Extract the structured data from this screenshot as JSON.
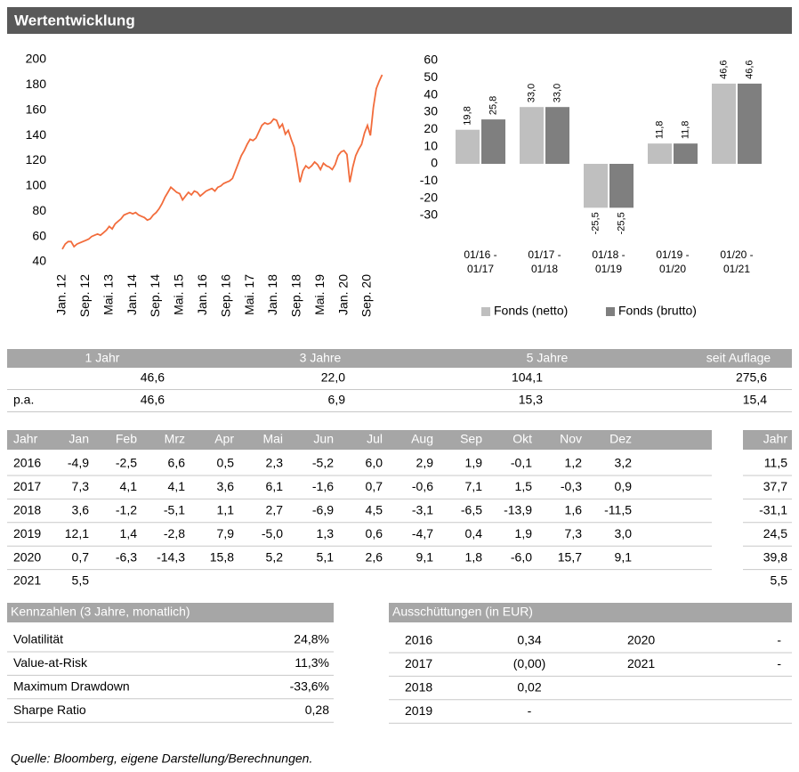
{
  "header": {
    "title": "Wertentwicklung"
  },
  "chart_data": [
    {
      "type": "line",
      "categories": [
        "Jan. 12",
        null,
        null,
        null,
        null,
        null,
        null,
        null,
        "Sep. 12",
        null,
        null,
        null,
        null,
        null,
        null,
        null,
        "Mai. 13",
        null,
        null,
        null,
        null,
        null,
        null,
        null,
        "Jan. 14",
        null,
        null,
        null,
        null,
        null,
        null,
        null,
        "Sep. 14",
        null,
        null,
        null,
        null,
        null,
        null,
        null,
        "Mai. 15",
        null,
        null,
        null,
        null,
        null,
        null,
        null,
        "Jan. 16",
        null,
        null,
        null,
        null,
        null,
        null,
        null,
        "Sep. 16",
        null,
        null,
        null,
        null,
        null,
        null,
        null,
        "Mai. 17",
        null,
        null,
        null,
        null,
        null,
        null,
        null,
        "Jan. 18",
        null,
        null,
        null,
        null,
        null,
        null,
        null,
        "Sep. 18",
        null,
        null,
        null,
        null,
        null,
        null,
        null,
        "Mai. 19",
        null,
        null,
        null,
        null,
        null,
        null,
        null,
        "Jan. 20",
        null,
        null,
        null,
        null,
        null,
        null,
        null,
        "Sep. 20",
        null,
        null,
        null,
        null,
        null
      ],
      "series": [
        {
          "color": "#f26c3c",
          "values": [
            50,
            54,
            56,
            56,
            52,
            54,
            55,
            56,
            57,
            58,
            60,
            61,
            62,
            61,
            63,
            65,
            68,
            66,
            70,
            72,
            74,
            77,
            78,
            79,
            78,
            79,
            77,
            76,
            75,
            73,
            74,
            77,
            79,
            82,
            86,
            91,
            95,
            99,
            97,
            95,
            94,
            89,
            92,
            95,
            93,
            96,
            95,
            92,
            94,
            96,
            97,
            98,
            96,
            99,
            100,
            102,
            103,
            104,
            106,
            112,
            118,
            124,
            128,
            133,
            137,
            136,
            138,
            143,
            148,
            150,
            149,
            150,
            153,
            152,
            146,
            149,
            141,
            144,
            137,
            131,
            118,
            103,
            112,
            116,
            114,
            116,
            119,
            117,
            113,
            118,
            116,
            115,
            113,
            117,
            124,
            127,
            128,
            125,
            103,
            115,
            124,
            129,
            133,
            142,
            148,
            140,
            162,
            177,
            183,
            188
          ]
        }
      ],
      "ylim": [
        40,
        200
      ],
      "yticks": [
        40,
        60,
        80,
        100,
        120,
        140,
        160,
        180,
        200
      ]
    },
    {
      "type": "bar",
      "categories": [
        [
          "01/16 -",
          "01/17"
        ],
        [
          "01/17 -",
          "01/18"
        ],
        [
          "01/18 -",
          "01/19"
        ],
        [
          "01/19 -",
          "01/20"
        ],
        [
          "01/20 -",
          "01/21"
        ]
      ],
      "series": [
        {
          "name": "Fonds (netto)",
          "color": "#bfbfbf",
          "values": [
            19.8,
            33.0,
            -25.5,
            11.8,
            46.6
          ],
          "value_labels": [
            "19,8",
            "33,0",
            "-25,5",
            "11,8",
            "46,6"
          ]
        },
        {
          "name": "Fonds (brutto)",
          "color": "#7f7f7f",
          "values": [
            25.8,
            33.0,
            -25.5,
            11.8,
            46.6
          ],
          "value_labels": [
            "25,8",
            "33,0",
            "-25,5",
            "11,8",
            "46,6"
          ]
        }
      ],
      "ylim": [
        -30,
        60
      ],
      "yticks": [
        -30,
        -20,
        -10,
        0,
        10,
        20,
        30,
        40,
        50,
        60
      ],
      "legend": "bottom"
    }
  ],
  "performance": {
    "headers": [
      "1 Jahr",
      "3 Jahre",
      "5 Jahre",
      "seit Auflage"
    ],
    "rows": [
      {
        "values": [
          "46,6",
          "22,0",
          "104,1",
          "275,6"
        ]
      },
      {
        "label": "p.a.",
        "values": [
          "46,6",
          "6,9",
          "15,3",
          "15,4"
        ]
      }
    ]
  },
  "monthly": {
    "year_header": "Jahr",
    "months": [
      "Jan",
      "Feb",
      "Mrz",
      "Apr",
      "Mai",
      "Jun",
      "Jul",
      "Aug",
      "Sep",
      "Okt",
      "Nov",
      "Dez"
    ],
    "total_header": "Jahr",
    "rows": [
      {
        "year": "2016",
        "months": [
          "-4,9",
          "-2,5",
          "6,6",
          "0,5",
          "2,3",
          "-5,2",
          "6,0",
          "2,9",
          "1,9",
          "-0,1",
          "1,2",
          "3,2"
        ],
        "total": "11,5"
      },
      {
        "year": "2017",
        "months": [
          "7,3",
          "4,1",
          "4,1",
          "3,6",
          "6,1",
          "-1,6",
          "0,7",
          "-0,6",
          "7,1",
          "1,5",
          "-0,3",
          "0,9"
        ],
        "total": "37,7"
      },
      {
        "year": "2018",
        "months": [
          "3,6",
          "-1,2",
          "-5,1",
          "1,1",
          "2,7",
          "-6,9",
          "4,5",
          "-3,1",
          "-6,5",
          "-13,9",
          "1,6",
          "-11,5"
        ],
        "total": "-31,1"
      },
      {
        "year": "2019",
        "months": [
          "12,1",
          "1,4",
          "-2,8",
          "7,9",
          "-5,0",
          "1,3",
          "0,6",
          "-4,7",
          "0,4",
          "1,9",
          "7,3",
          "3,0"
        ],
        "total": "24,5"
      },
      {
        "year": "2020",
        "months": [
          "0,7",
          "-6,3",
          "-14,3",
          "15,8",
          "5,2",
          "5,1",
          "2,6",
          "9,1",
          "1,8",
          "-6,0",
          "15,7",
          "9,1"
        ],
        "total": "39,8"
      },
      {
        "year": "2021",
        "months": [
          "5,5"
        ],
        "total": "5,5"
      }
    ]
  },
  "kennzahlen": {
    "title": "Kennzahlen (3 Jahre, monatlich)",
    "rows": [
      [
        "Volatilität",
        "24,8%"
      ],
      [
        "Value-at-Risk",
        "11,3%"
      ],
      [
        "Maximum Drawdown",
        "-33,6%"
      ],
      [
        "Sharpe Ratio",
        "0,28"
      ]
    ]
  },
  "ausschuettungen": {
    "title": "Ausschüttungen (in EUR)",
    "rows": [
      [
        "2016",
        "0,34",
        "2020",
        "-"
      ],
      [
        "2017",
        "(0,00)",
        "2021",
        "-"
      ],
      [
        "2018",
        "0,02"
      ],
      [
        "2019",
        "-"
      ]
    ]
  },
  "footer": {
    "source": "Quelle: Bloomberg, eigene Darstellung/Berechnungen."
  }
}
